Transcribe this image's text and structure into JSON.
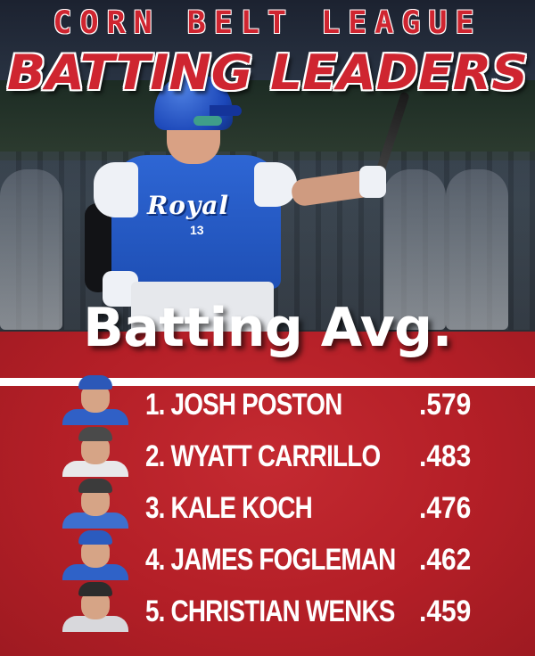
{
  "header": {
    "league": "CORN BELT LEAGUE",
    "headline": "BATTING LEADERS"
  },
  "hero": {
    "jersey_text": "Royal",
    "jersey_number": "13"
  },
  "stat": {
    "title": "Batting Avg."
  },
  "leaders": [
    {
      "label": "1. JOSH POSTON",
      "value": ".579",
      "cap_color": "#2c58b8",
      "shirt_color": "#3060c6"
    },
    {
      "label": "2. WYATT CARRILLO",
      "value": ".483",
      "cap_color": "#4a4a4a",
      "shirt_color": "#e8e8ea"
    },
    {
      "label": "3. KALE KOCH",
      "value": ".476",
      "cap_color": "#3b3b3b",
      "shirt_color": "#3d6fce"
    },
    {
      "label": "4. JAMES FOGLEMAN",
      "value": ".462",
      "cap_color": "#2b5bbf",
      "shirt_color": "#2f62c8"
    },
    {
      "label": "5. CHRISTIAN WENKS",
      "value": ".459",
      "cap_color": "#2c2c2c",
      "shirt_color": "#d8d8dc"
    }
  ],
  "colors": {
    "brand_red": "#cf2530",
    "panel_red": "#b41f27",
    "team_blue": "#1e4fb5"
  }
}
